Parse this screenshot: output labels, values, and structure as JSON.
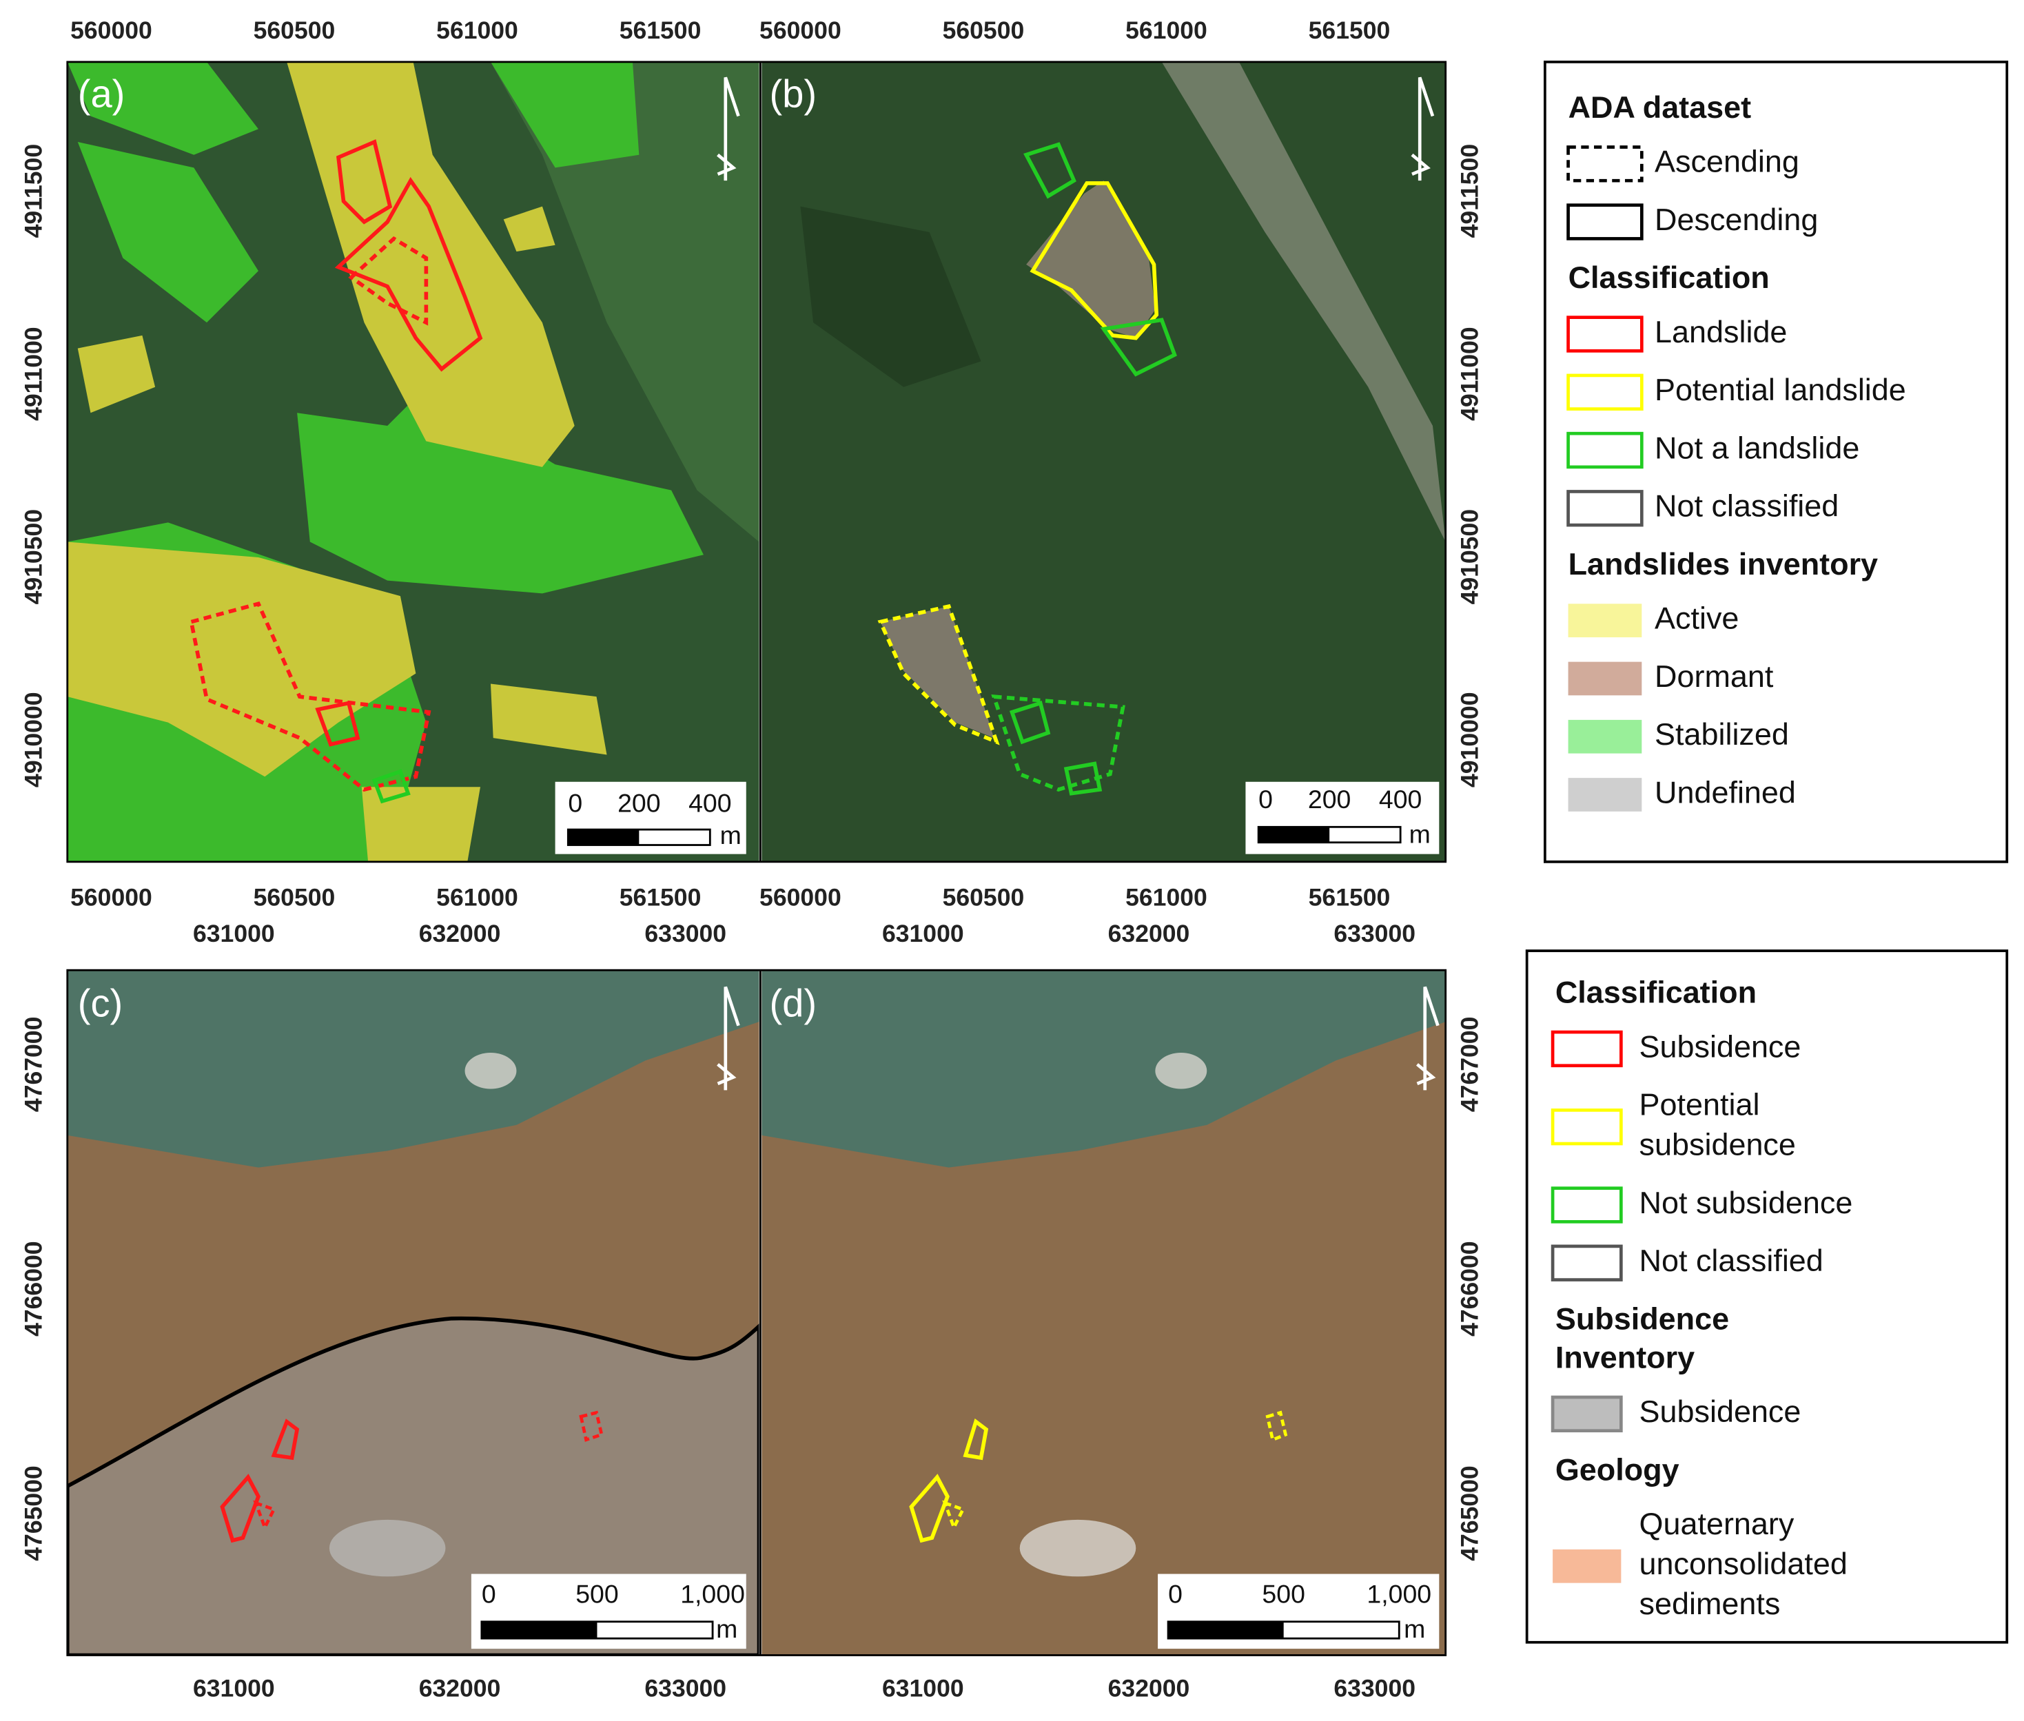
{
  "panels": [
    {
      "label": "(a)",
      "top_x_ticks": [
        560000,
        560500,
        561000,
        561500
      ],
      "bottom_x_ticks": [
        560000,
        560500,
        561000,
        561500
      ],
      "y_ticks": [
        4911500,
        4911000,
        4910500,
        4910000
      ],
      "scale_labels": [
        "0",
        "200",
        "400"
      ],
      "scale_unit": "m"
    },
    {
      "label": "(b)",
      "top_x_ticks": [
        560000,
        560500,
        561000,
        561500
      ],
      "bottom_x_ticks": [
        560000,
        560500,
        561000,
        561500
      ],
      "y_ticks": [
        4911500,
        4911000,
        4910500,
        4910000
      ],
      "scale_labels": [
        "0",
        "200",
        "400"
      ],
      "scale_unit": "m"
    },
    {
      "label": "(c)",
      "top_x_ticks": [
        631000,
        632000,
        633000
      ],
      "bottom_x_ticks": [
        631000,
        632000,
        633000
      ],
      "y_ticks": [
        4767000,
        4766000,
        4765000
      ],
      "scale_labels": [
        "0",
        "500",
        "1,000"
      ],
      "scale_unit": "m"
    },
    {
      "label": "(d)",
      "top_x_ticks": [
        631000,
        632000,
        633000
      ],
      "bottom_x_ticks": [
        631000,
        632000,
        633000
      ],
      "y_ticks": [
        4767000,
        4766000,
        4765000
      ],
      "scale_labels": [
        "0",
        "500",
        "1,000"
      ],
      "scale_unit": "m"
    }
  ],
  "legends": [
    {
      "sections": [
        {
          "title": [
            "ADA dataset"
          ],
          "items": [
            {
              "lines": [
                "Ascending"
              ],
              "stroke": "#000000",
              "fill": "none",
              "dashed": true
            },
            {
              "lines": [
                "Descending"
              ],
              "stroke": "#000000",
              "fill": "none",
              "dashed": false
            }
          ]
        },
        {
          "title": [
            "Classification"
          ],
          "items": [
            {
              "lines": [
                "Landslide"
              ],
              "stroke": "#ff0000",
              "fill": "none",
              "dashed": false
            },
            {
              "lines": [
                "Potential landslide"
              ],
              "stroke": "#ffff00",
              "fill": "none",
              "dashed": false
            },
            {
              "lines": [
                "Not a landslide"
              ],
              "stroke": "#22cc22",
              "fill": "none",
              "dashed": false
            },
            {
              "lines": [
                "Not classified"
              ],
              "stroke": "#555555",
              "fill": "none",
              "dashed": false
            }
          ]
        },
        {
          "title": [
            "Landslides inventory"
          ],
          "items": [
            {
              "lines": [
                "Active"
              ],
              "stroke": "none",
              "fill": "#f8f59a",
              "dashed": false
            },
            {
              "lines": [
                "Dormant"
              ],
              "stroke": "none",
              "fill": "#d1ab9b",
              "dashed": false
            },
            {
              "lines": [
                "Stabilized"
              ],
              "stroke": "none",
              "fill": "#99ef99",
              "dashed": false
            },
            {
              "lines": [
                "Undefined"
              ],
              "stroke": "none",
              "fill": "#cfcfcf",
              "dashed": false
            }
          ]
        }
      ]
    },
    {
      "sections": [
        {
          "title": [
            "Classification"
          ],
          "items": [
            {
              "lines": [
                "Subsidence"
              ],
              "stroke": "#ff0000",
              "fill": "none",
              "dashed": false
            },
            {
              "lines": [
                "Potential",
                "subsidence"
              ],
              "stroke": "#ffff00",
              "fill": "none",
              "dashed": false
            },
            {
              "lines": [
                "Not subsidence"
              ],
              "stroke": "#22cc22",
              "fill": "none",
              "dashed": false
            },
            {
              "lines": [
                "Not classified"
              ],
              "stroke": "#555555",
              "fill": "none",
              "dashed": false
            }
          ]
        },
        {
          "title": [
            "Subsidence",
            "Inventory"
          ],
          "items": [
            {
              "lines": [
                "Subsidence"
              ],
              "stroke": "#888888",
              "fill": "#bdbdbd",
              "dashed": false
            }
          ]
        },
        {
          "title": [
            "Geology"
          ],
          "items": [
            {
              "lines": [
                "Quaternary",
                "unconsolidated",
                "sediments"
              ],
              "stroke": "none",
              "fill": "#f7b998",
              "dashed": false
            }
          ]
        }
      ]
    }
  ]
}
